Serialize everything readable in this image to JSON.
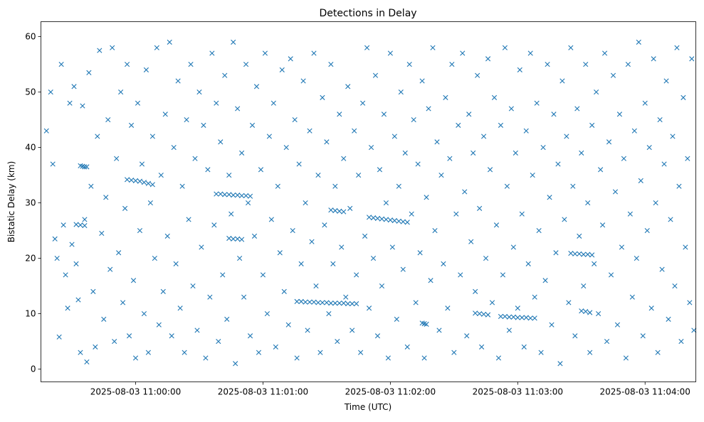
{
  "chart_data": {
    "type": "scatter",
    "title": "Detections in Delay",
    "xlabel": "Time (UTC)",
    "ylabel": "Bistatic Delay (km)",
    "x_units": "seconds relative to 2025-08-03 11:00:00 UTC",
    "xlim": [
      -44.6,
      263.9
    ],
    "ylim": [
      -2.3,
      62.7
    ],
    "grid": false,
    "marker": "x",
    "color": "#1f77b4",
    "x_ticks": [
      {
        "value": 0,
        "label": "2025-08-03 11:00:00"
      },
      {
        "value": 60,
        "label": "2025-08-03 11:01:00"
      },
      {
        "value": 120,
        "label": "2025-08-03 11:02:00"
      },
      {
        "value": 180,
        "label": "2025-08-03 11:03:00"
      },
      {
        "value": 240,
        "label": "2025-08-03 11:04:00"
      }
    ],
    "y_ticks": [
      {
        "value": 0,
        "label": "0"
      },
      {
        "value": 10,
        "label": "10"
      },
      {
        "value": 20,
        "label": "20"
      },
      {
        "value": 30,
        "label": "30"
      },
      {
        "value": 40,
        "label": "40"
      },
      {
        "value": 50,
        "label": "50"
      },
      {
        "value": 60,
        "label": "60"
      }
    ],
    "points": [
      [
        -42,
        43
      ],
      [
        -40,
        50
      ],
      [
        -39,
        37
      ],
      [
        -38,
        23.5
      ],
      [
        -37,
        20
      ],
      [
        -36,
        5.8
      ],
      [
        -35,
        55
      ],
      [
        -34,
        26
      ],
      [
        -33,
        17
      ],
      [
        -32,
        11
      ],
      [
        -31,
        48
      ],
      [
        -30,
        22.5
      ],
      [
        -29,
        51
      ],
      [
        -28,
        19
      ],
      [
        -27,
        12.5
      ],
      [
        -26,
        3
      ],
      [
        -25,
        47.5
      ],
      [
        -24,
        27
      ],
      [
        -23,
        1.3
      ],
      [
        -22,
        53.5
      ],
      [
        -21,
        33
      ],
      [
        -20,
        14
      ],
      [
        -19,
        4
      ],
      [
        -18,
        42
      ],
      [
        -17,
        57.5
      ],
      [
        -16,
        24.5
      ],
      [
        -15,
        9
      ],
      [
        -14,
        31
      ],
      [
        -13,
        45
      ],
      [
        -12,
        18
      ],
      [
        -11,
        58
      ],
      [
        -10,
        5
      ],
      [
        -9,
        38
      ],
      [
        -8,
        21
      ],
      [
        -7,
        50
      ],
      [
        -6,
        12
      ],
      [
        -5,
        29
      ],
      [
        -4,
        55
      ],
      [
        -3,
        6
      ],
      [
        -2,
        44
      ],
      [
        -1,
        16
      ],
      [
        0,
        2
      ],
      [
        1,
        48
      ],
      [
        2,
        25
      ],
      [
        3,
        37
      ],
      [
        4,
        10
      ],
      [
        5,
        54
      ],
      [
        6,
        3
      ],
      [
        7,
        30
      ],
      [
        8,
        42
      ],
      [
        9,
        20
      ],
      [
        10,
        58
      ],
      [
        11,
        8
      ],
      [
        12,
        35
      ],
      [
        13,
        14
      ],
      [
        14,
        46
      ],
      [
        15,
        24
      ],
      [
        16,
        59
      ],
      [
        17,
        6
      ],
      [
        18,
        40
      ],
      [
        19,
        19
      ],
      [
        20,
        52
      ],
      [
        21,
        11
      ],
      [
        22,
        33
      ],
      [
        23,
        3
      ],
      [
        24,
        45
      ],
      [
        25,
        27
      ],
      [
        26,
        55
      ],
      [
        27,
        15
      ],
      [
        28,
        38
      ],
      [
        29,
        7
      ],
      [
        30,
        50
      ],
      [
        31,
        22
      ],
      [
        32,
        44
      ],
      [
        33,
        2
      ],
      [
        34,
        36
      ],
      [
        35,
        13
      ],
      [
        36,
        57
      ],
      [
        37,
        26
      ],
      [
        38,
        48
      ],
      [
        39,
        5
      ],
      [
        40,
        41
      ],
      [
        41,
        17
      ],
      [
        42,
        53
      ],
      [
        43,
        9
      ],
      [
        44,
        35
      ],
      [
        45,
        28
      ],
      [
        46,
        59
      ],
      [
        47,
        1
      ],
      [
        48,
        47
      ],
      [
        49,
        20
      ],
      [
        50,
        39
      ],
      [
        51,
        13
      ],
      [
        52,
        55
      ],
      [
        53,
        30
      ],
      [
        54,
        6
      ],
      [
        55,
        44
      ],
      [
        56,
        24
      ],
      [
        57,
        51
      ],
      [
        58,
        3
      ],
      [
        59,
        36
      ],
      [
        60,
        17
      ],
      [
        61,
        57
      ],
      [
        62,
        10
      ],
      [
        63,
        42
      ],
      [
        64,
        27
      ],
      [
        65,
        48
      ],
      [
        66,
        4
      ],
      [
        67,
        33
      ],
      [
        68,
        21
      ],
      [
        69,
        54
      ],
      [
        70,
        14
      ],
      [
        71,
        40
      ],
      [
        72,
        8
      ],
      [
        73,
        56
      ],
      [
        74,
        25
      ],
      [
        75,
        45
      ],
      [
        76,
        2
      ],
      [
        77,
        37
      ],
      [
        78,
        19
      ],
      [
        79,
        52
      ],
      [
        80,
        30
      ],
      [
        81,
        7
      ],
      [
        82,
        43
      ],
      [
        83,
        23
      ],
      [
        84,
        57
      ],
      [
        85,
        15
      ],
      [
        86,
        35
      ],
      [
        87,
        3
      ],
      [
        88,
        49
      ],
      [
        89,
        26
      ],
      [
        90,
        41
      ],
      [
        91,
        10
      ],
      [
        92,
        55
      ],
      [
        93,
        19
      ],
      [
        94,
        33
      ],
      [
        95,
        5
      ],
      [
        96,
        46
      ],
      [
        97,
        22
      ],
      [
        98,
        38
      ],
      [
        99,
        13
      ],
      [
        100,
        51
      ],
      [
        101,
        29
      ],
      [
        102,
        7
      ],
      [
        103,
        43
      ],
      [
        104,
        17
      ],
      [
        105,
        35
      ],
      [
        106,
        3
      ],
      [
        107,
        48
      ],
      [
        108,
        24
      ],
      [
        109,
        58
      ],
      [
        110,
        11
      ],
      [
        111,
        40
      ],
      [
        112,
        20
      ],
      [
        113,
        53
      ],
      [
        114,
        6
      ],
      [
        115,
        36
      ],
      [
        116,
        15
      ],
      [
        117,
        46
      ],
      [
        118,
        30
      ],
      [
        119,
        2
      ],
      [
        120,
        57
      ],
      [
        121,
        22
      ],
      [
        122,
        42
      ],
      [
        123,
        9
      ],
      [
        124,
        33
      ],
      [
        125,
        50
      ],
      [
        126,
        18
      ],
      [
        127,
        39
      ],
      [
        128,
        4
      ],
      [
        129,
        55
      ],
      [
        130,
        28
      ],
      [
        131,
        45
      ],
      [
        132,
        12
      ],
      [
        133,
        37
      ],
      [
        134,
        21
      ],
      [
        135,
        52
      ],
      [
        136,
        2
      ],
      [
        137,
        31
      ],
      [
        138,
        47
      ],
      [
        139,
        16
      ],
      [
        140,
        58
      ],
      [
        141,
        25
      ],
      [
        142,
        41
      ],
      [
        143,
        7
      ],
      [
        144,
        35
      ],
      [
        145,
        19
      ],
      [
        146,
        49
      ],
      [
        147,
        11
      ],
      [
        148,
        38
      ],
      [
        149,
        55
      ],
      [
        150,
        3
      ],
      [
        151,
        28
      ],
      [
        152,
        44
      ],
      [
        153,
        17
      ],
      [
        154,
        57
      ],
      [
        155,
        32
      ],
      [
        156,
        6
      ],
      [
        157,
        46
      ],
      [
        158,
        23
      ],
      [
        159,
        39
      ],
      [
        160,
        14
      ],
      [
        161,
        53
      ],
      [
        162,
        29
      ],
      [
        163,
        4
      ],
      [
        164,
        42
      ],
      [
        165,
        20
      ],
      [
        166,
        56
      ],
      [
        167,
        36
      ],
      [
        168,
        12
      ],
      [
        169,
        49
      ],
      [
        170,
        26
      ],
      [
        171,
        2
      ],
      [
        172,
        44
      ],
      [
        173,
        17
      ],
      [
        174,
        58
      ],
      [
        175,
        33
      ],
      [
        176,
        7
      ],
      [
        177,
        47
      ],
      [
        178,
        22
      ],
      [
        179,
        39
      ],
      [
        180,
        11
      ],
      [
        181,
        54
      ],
      [
        182,
        28
      ],
      [
        183,
        4
      ],
      [
        184,
        43
      ],
      [
        185,
        19
      ],
      [
        186,
        57
      ],
      [
        187,
        35
      ],
      [
        188,
        13
      ],
      [
        189,
        48
      ],
      [
        190,
        25
      ],
      [
        191,
        3
      ],
      [
        192,
        40
      ],
      [
        193,
        16
      ],
      [
        194,
        55
      ],
      [
        195,
        31
      ],
      [
        196,
        8
      ],
      [
        197,
        46
      ],
      [
        198,
        21
      ],
      [
        199,
        37
      ],
      [
        200,
        1
      ],
      [
        201,
        52
      ],
      [
        202,
        27
      ],
      [
        203,
        42
      ],
      [
        204,
        12
      ],
      [
        205,
        58
      ],
      [
        206,
        33
      ],
      [
        207,
        6
      ],
      [
        208,
        47
      ],
      [
        209,
        24
      ],
      [
        210,
        39
      ],
      [
        211,
        15
      ],
      [
        212,
        55
      ],
      [
        213,
        30
      ],
      [
        214,
        3
      ],
      [
        215,
        44
      ],
      [
        216,
        19
      ],
      [
        217,
        50
      ],
      [
        218,
        10
      ],
      [
        219,
        36
      ],
      [
        220,
        26
      ],
      [
        221,
        57
      ],
      [
        222,
        5
      ],
      [
        223,
        41
      ],
      [
        224,
        17
      ],
      [
        225,
        53
      ],
      [
        226,
        32
      ],
      [
        227,
        8
      ],
      [
        228,
        46
      ],
      [
        229,
        22
      ],
      [
        230,
        38
      ],
      [
        231,
        2
      ],
      [
        232,
        55
      ],
      [
        233,
        28
      ],
      [
        234,
        13
      ],
      [
        235,
        43
      ],
      [
        236,
        20
      ],
      [
        237,
        59
      ],
      [
        238,
        34
      ],
      [
        239,
        6
      ],
      [
        240,
        48
      ],
      [
        241,
        25
      ],
      [
        242,
        40
      ],
      [
        243,
        11
      ],
      [
        244,
        56
      ],
      [
        245,
        30
      ],
      [
        246,
        3
      ],
      [
        247,
        45
      ],
      [
        248,
        18
      ],
      [
        249,
        37
      ],
      [
        250,
        52
      ],
      [
        251,
        9
      ],
      [
        252,
        27
      ],
      [
        253,
        42
      ],
      [
        254,
        15
      ],
      [
        255,
        58
      ],
      [
        256,
        33
      ],
      [
        257,
        5
      ],
      [
        258,
        49
      ],
      [
        259,
        22
      ],
      [
        260,
        38
      ],
      [
        261,
        12
      ],
      [
        262,
        56
      ],
      [
        263,
        7
      ],
      [
        -4,
        34.2
      ],
      [
        -2,
        34.1
      ],
      [
        0,
        34
      ],
      [
        2,
        33.9
      ],
      [
        4,
        33.7
      ],
      [
        6,
        33.5
      ],
      [
        8,
        33.3
      ],
      [
        76,
        12.2
      ],
      [
        78,
        12.2
      ],
      [
        80,
        12.1
      ],
      [
        82,
        12.1
      ],
      [
        84,
        12.1
      ],
      [
        86,
        12
      ],
      [
        88,
        12
      ],
      [
        90,
        12
      ],
      [
        92,
        11.9
      ],
      [
        94,
        11.9
      ],
      [
        96,
        11.9
      ],
      [
        98,
        11.9
      ],
      [
        100,
        11.8
      ],
      [
        102,
        11.8
      ],
      [
        104,
        11.8
      ],
      [
        92,
        28.7
      ],
      [
        94,
        28.6
      ],
      [
        96,
        28.5
      ],
      [
        98,
        28.4
      ],
      [
        110,
        27.4
      ],
      [
        112,
        27.3
      ],
      [
        114,
        27.2
      ],
      [
        116,
        27.1
      ],
      [
        118,
        27
      ],
      [
        120,
        26.9
      ],
      [
        122,
        26.8
      ],
      [
        124,
        26.7
      ],
      [
        126,
        26.6
      ],
      [
        128,
        26.5
      ],
      [
        38,
        31.6
      ],
      [
        40,
        31.6
      ],
      [
        42,
        31.5
      ],
      [
        44,
        31.5
      ],
      [
        46,
        31.4
      ],
      [
        48,
        31.4
      ],
      [
        50,
        31.3
      ],
      [
        52,
        31.3
      ],
      [
        54,
        31.2
      ],
      [
        44,
        23.6
      ],
      [
        46,
        23.5
      ],
      [
        48,
        23.5
      ],
      [
        50,
        23.4
      ],
      [
        160,
        10.1
      ],
      [
        162,
        10
      ],
      [
        164,
        9.9
      ],
      [
        166,
        9.8
      ],
      [
        172,
        9.5
      ],
      [
        174,
        9.5
      ],
      [
        176,
        9.4
      ],
      [
        178,
        9.4
      ],
      [
        180,
        9.3
      ],
      [
        182,
        9.3
      ],
      [
        184,
        9.3
      ],
      [
        186,
        9.2
      ],
      [
        188,
        9.2
      ],
      [
        205,
        20.9
      ],
      [
        207,
        20.8
      ],
      [
        209,
        20.8
      ],
      [
        211,
        20.7
      ],
      [
        213,
        20.7
      ],
      [
        215,
        20.6
      ],
      [
        -26,
        36.7
      ],
      [
        -25,
        36.6
      ],
      [
        -24,
        36.5
      ],
      [
        -23,
        36.5
      ],
      [
        -28,
        26.1
      ],
      [
        -26,
        26
      ],
      [
        -24,
        25.9
      ],
      [
        135,
        8.3
      ],
      [
        136,
        8.2
      ],
      [
        137,
        8.1
      ],
      [
        210,
        10.5
      ],
      [
        212,
        10.4
      ],
      [
        214,
        10.2
      ]
    ]
  }
}
